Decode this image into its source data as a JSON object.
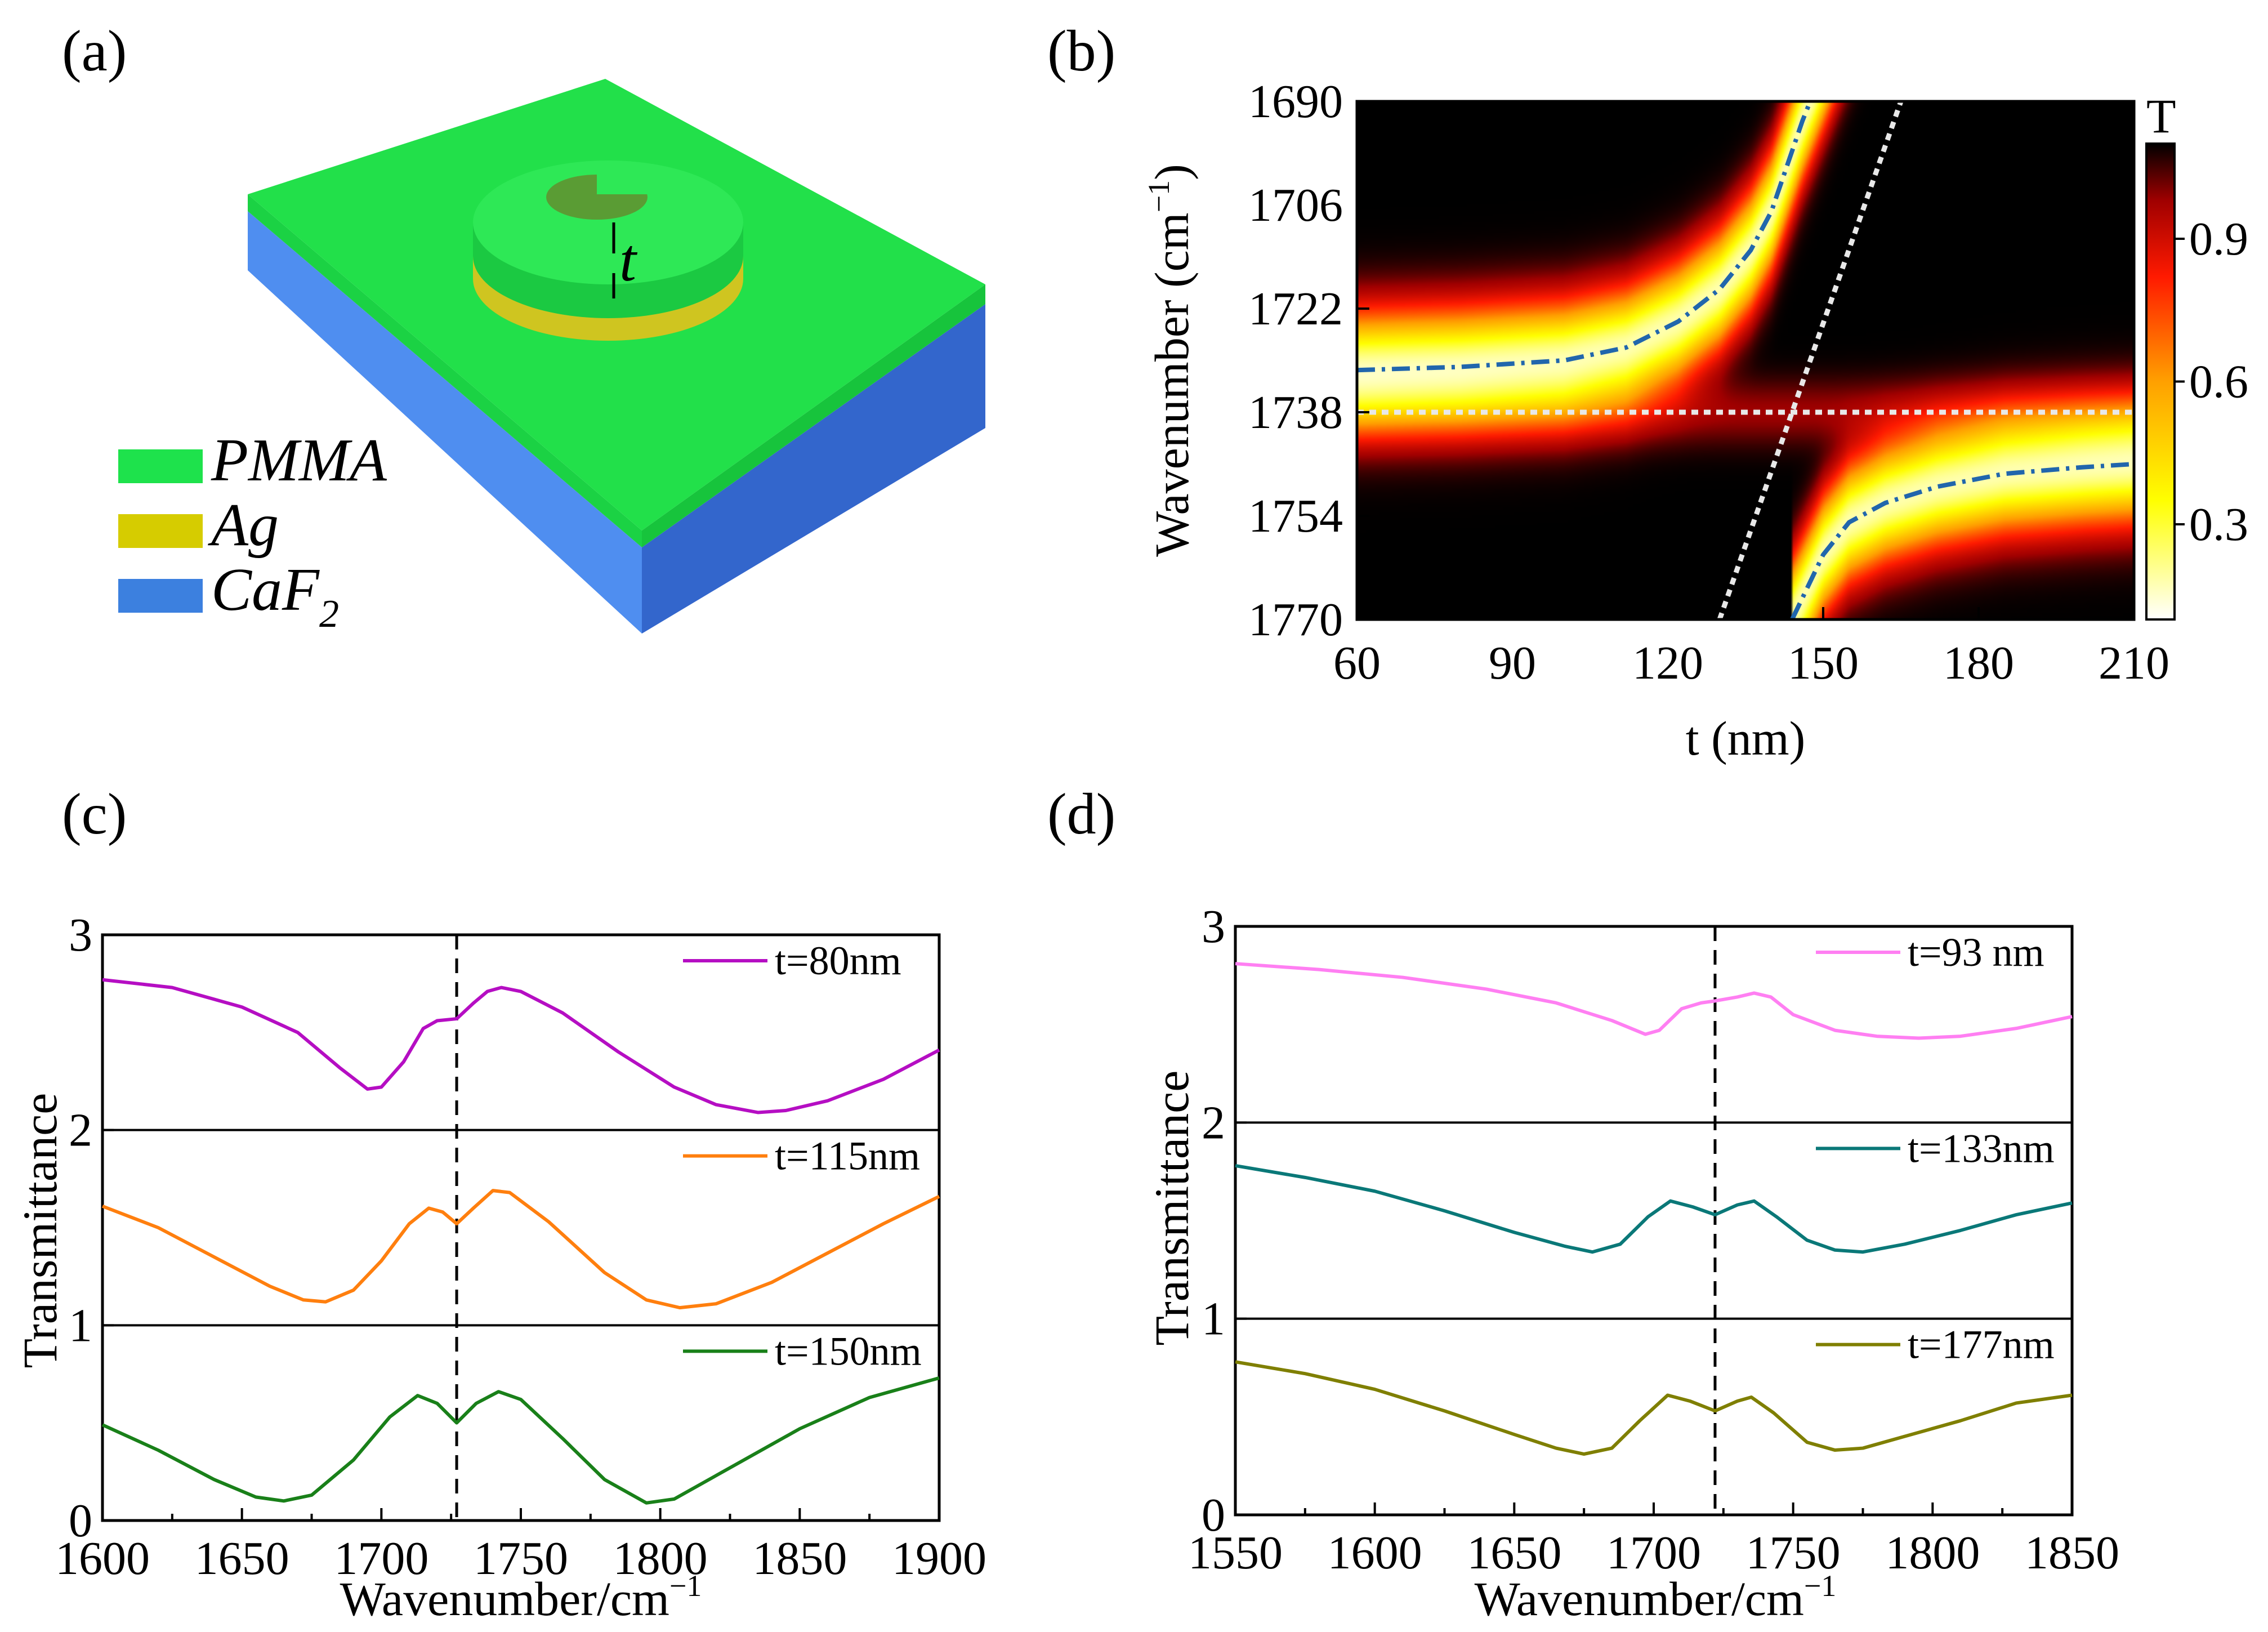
{
  "panels": {
    "a": {
      "label": "(a)",
      "thickness_symbol": "t",
      "materials": [
        {
          "name": "PMMA",
          "sub": "",
          "color": "#1ee24c"
        },
        {
          "name": "Ag",
          "sub": "",
          "color": "#d6cc00"
        },
        {
          "name": "CaF",
          "sub": "2",
          "color": "#3c80df"
        }
      ]
    },
    "b": {
      "label": "(b)"
    },
    "c": {
      "label": "(c)"
    },
    "d": {
      "label": "(d)"
    }
  },
  "chart_data": [
    {
      "id": "b",
      "type": "heatmap",
      "xlabel": "t (nm)",
      "ylabel": "Wavenumber (cm",
      "ylabel_unit_sup": "−1",
      "ylabel_close": ")",
      "xlim": [
        60,
        210
      ],
      "ylim": [
        1690,
        1770
      ],
      "y_inverted": true,
      "xticks": [
        "60",
        "90",
        "120",
        "150",
        "180",
        "210"
      ],
      "yticks": [
        "1690",
        "1706",
        "1722",
        "1738",
        "1754",
        "1770"
      ],
      "colorbar": {
        "title": "T",
        "ticks": [
          "0.3",
          "0.6",
          "0.9"
        ],
        "range": [
          0.1,
          1.1
        ]
      },
      "uncoupled_modes": {
        "horizontal_wavenumber": 1738,
        "diagonal": [
          [
            130,
            1770
          ],
          [
            165,
            1690
          ]
        ]
      },
      "upper_branch": [
        [
          60,
          1731.5
        ],
        [
          80,
          1731
        ],
        [
          100,
          1730
        ],
        [
          112,
          1728
        ],
        [
          122,
          1724
        ],
        [
          130,
          1719
        ],
        [
          136,
          1713
        ],
        [
          140,
          1707
        ],
        [
          143,
          1700
        ],
        [
          146,
          1693
        ],
        [
          147.5,
          1690
        ]
      ],
      "lower_branch": [
        [
          144,
          1770
        ],
        [
          147,
          1765
        ],
        [
          150,
          1760
        ],
        [
          155,
          1755
        ],
        [
          162,
          1752
        ],
        [
          172,
          1749.5
        ],
        [
          185,
          1747.5
        ],
        [
          200,
          1746.5
        ],
        [
          210,
          1746
        ]
      ]
    },
    {
      "id": "c",
      "type": "line",
      "xlabel": "Wavenumber/cm",
      "xlabel_sup": "−1",
      "ylabel": "Transmittance",
      "xlim": [
        1600,
        1900
      ],
      "ylim": [
        0,
        3
      ],
      "xticks": [
        "1600",
        "1650",
        "1700",
        "1750",
        "1800",
        "1850",
        "1900"
      ],
      "yticks": [
        "0",
        "1",
        "2",
        "3"
      ],
      "dashed_line_x": 1727,
      "series": [
        {
          "name": "t=80nm",
          "color": "#b50ec3",
          "offset": 2,
          "points": [
            [
              1600,
              0.77
            ],
            [
              1625,
              0.73
            ],
            [
              1650,
              0.63
            ],
            [
              1670,
              0.5
            ],
            [
              1685,
              0.32
            ],
            [
              1695,
              0.21
            ],
            [
              1700,
              0.22
            ],
            [
              1708,
              0.35
            ],
            [
              1715,
              0.52
            ],
            [
              1720,
              0.56
            ],
            [
              1727,
              0.57
            ],
            [
              1733,
              0.65
            ],
            [
              1738,
              0.71
            ],
            [
              1743,
              0.73
            ],
            [
              1750,
              0.71
            ],
            [
              1765,
              0.6
            ],
            [
              1785,
              0.4
            ],
            [
              1805,
              0.22
            ],
            [
              1820,
              0.13
            ],
            [
              1835,
              0.09
            ],
            [
              1845,
              0.1
            ],
            [
              1860,
              0.15
            ],
            [
              1880,
              0.26
            ],
            [
              1900,
              0.41
            ]
          ]
        },
        {
          "name": "t=115nm",
          "color": "#ff7f0e",
          "offset": 1,
          "points": [
            [
              1600,
              0.61
            ],
            [
              1620,
              0.5
            ],
            [
              1640,
              0.35
            ],
            [
              1660,
              0.2
            ],
            [
              1672,
              0.13
            ],
            [
              1680,
              0.12
            ],
            [
              1690,
              0.18
            ],
            [
              1700,
              0.33
            ],
            [
              1710,
              0.52
            ],
            [
              1717,
              0.6
            ],
            [
              1722,
              0.58
            ],
            [
              1727,
              0.52
            ],
            [
              1733,
              0.6
            ],
            [
              1740,
              0.69
            ],
            [
              1746,
              0.68
            ],
            [
              1760,
              0.53
            ],
            [
              1780,
              0.27
            ],
            [
              1795,
              0.13
            ],
            [
              1807,
              0.09
            ],
            [
              1820,
              0.11
            ],
            [
              1840,
              0.22
            ],
            [
              1860,
              0.37
            ],
            [
              1880,
              0.52
            ],
            [
              1900,
              0.66
            ]
          ]
        },
        {
          "name": "t=150nm",
          "color": "#198019",
          "offset": 0,
          "points": [
            [
              1600,
              0.49
            ],
            [
              1620,
              0.36
            ],
            [
              1640,
              0.21
            ],
            [
              1655,
              0.12
            ],
            [
              1665,
              0.1
            ],
            [
              1675,
              0.13
            ],
            [
              1690,
              0.31
            ],
            [
              1703,
              0.53
            ],
            [
              1713,
              0.64
            ],
            [
              1720,
              0.6
            ],
            [
              1727,
              0.5
            ],
            [
              1734,
              0.6
            ],
            [
              1742,
              0.66
            ],
            [
              1750,
              0.62
            ],
            [
              1765,
              0.42
            ],
            [
              1780,
              0.21
            ],
            [
              1795,
              0.09
            ],
            [
              1805,
              0.11
            ],
            [
              1825,
              0.27
            ],
            [
              1850,
              0.47
            ],
            [
              1875,
              0.63
            ],
            [
              1900,
              0.73
            ]
          ]
        }
      ]
    },
    {
      "id": "d",
      "type": "line",
      "xlabel": "Wavenumber/cm",
      "xlabel_sup": "−1",
      "ylabel": "Transmittance",
      "xlim": [
        1550,
        1850
      ],
      "ylim": [
        0,
        3
      ],
      "xticks": [
        "1550",
        "1600",
        "1650",
        "1700",
        "1750",
        "1800",
        "1850"
      ],
      "yticks": [
        "0",
        "1",
        "2",
        "3"
      ],
      "dashed_line_x": 1722,
      "series": [
        {
          "name": "t=93 nm",
          "color": "#ff7ff2",
          "offset": 2,
          "points": [
            [
              1550,
              0.81
            ],
            [
              1580,
              0.78
            ],
            [
              1610,
              0.74
            ],
            [
              1640,
              0.68
            ],
            [
              1665,
              0.61
            ],
            [
              1685,
              0.52
            ],
            [
              1697,
              0.45
            ],
            [
              1702,
              0.47
            ],
            [
              1710,
              0.58
            ],
            [
              1717,
              0.61
            ],
            [
              1722,
              0.62
            ],
            [
              1730,
              0.64
            ],
            [
              1736,
              0.66
            ],
            [
              1742,
              0.64
            ],
            [
              1750,
              0.55
            ],
            [
              1765,
              0.47
            ],
            [
              1780,
              0.44
            ],
            [
              1795,
              0.43
            ],
            [
              1810,
              0.44
            ],
            [
              1830,
              0.48
            ],
            [
              1850,
              0.54
            ]
          ]
        },
        {
          "name": "t=133nm",
          "color": "#0a7878",
          "offset": 1,
          "points": [
            [
              1550,
              0.78
            ],
            [
              1575,
              0.72
            ],
            [
              1600,
              0.65
            ],
            [
              1625,
              0.55
            ],
            [
              1650,
              0.44
            ],
            [
              1668,
              0.37
            ],
            [
              1678,
              0.34
            ],
            [
              1688,
              0.38
            ],
            [
              1698,
              0.52
            ],
            [
              1706,
              0.6
            ],
            [
              1714,
              0.57
            ],
            [
              1722,
              0.53
            ],
            [
              1730,
              0.58
            ],
            [
              1736,
              0.6
            ],
            [
              1744,
              0.52
            ],
            [
              1755,
              0.4
            ],
            [
              1765,
              0.35
            ],
            [
              1775,
              0.34
            ],
            [
              1790,
              0.38
            ],
            [
              1810,
              0.45
            ],
            [
              1830,
              0.53
            ],
            [
              1850,
              0.59
            ]
          ]
        },
        {
          "name": "t=177nm",
          "color": "#7f7f00",
          "offset": 0,
          "points": [
            [
              1550,
              0.78
            ],
            [
              1575,
              0.72
            ],
            [
              1600,
              0.64
            ],
            [
              1625,
              0.53
            ],
            [
              1650,
              0.41
            ],
            [
              1665,
              0.34
            ],
            [
              1675,
              0.31
            ],
            [
              1685,
              0.34
            ],
            [
              1695,
              0.48
            ],
            [
              1705,
              0.61
            ],
            [
              1713,
              0.58
            ],
            [
              1722,
              0.53
            ],
            [
              1730,
              0.58
            ],
            [
              1735,
              0.6
            ],
            [
              1743,
              0.52
            ],
            [
              1755,
              0.37
            ],
            [
              1765,
              0.33
            ],
            [
              1775,
              0.34
            ],
            [
              1790,
              0.4
            ],
            [
              1810,
              0.48
            ],
            [
              1830,
              0.57
            ],
            [
              1850,
              0.61
            ]
          ]
        }
      ]
    }
  ]
}
